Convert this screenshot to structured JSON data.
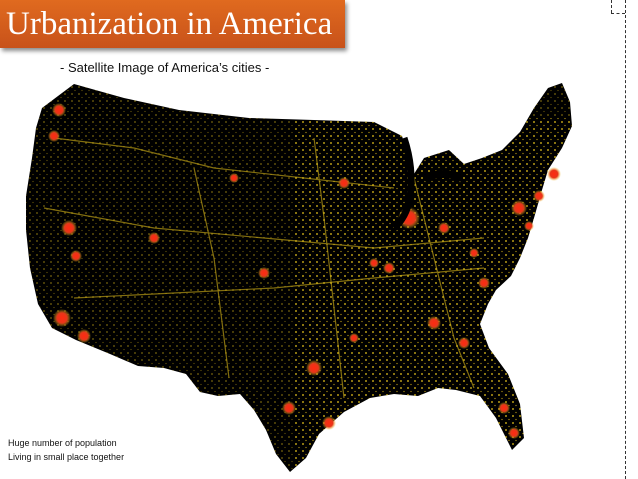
{
  "slide": {
    "title": "Urbanization in America",
    "subtitle": "- Satellite Image of America’s cities -",
    "note_line1": "Huge number of population",
    "note_line2": "Living in small place together"
  },
  "colors": {
    "title_fill": "#d35f1d",
    "map_land": "#000000",
    "lights_low": "#e8c81e",
    "lights_high": "#e8351a"
  },
  "map": {
    "type": "satellite night-lights map",
    "region": "contiguous United States"
  }
}
